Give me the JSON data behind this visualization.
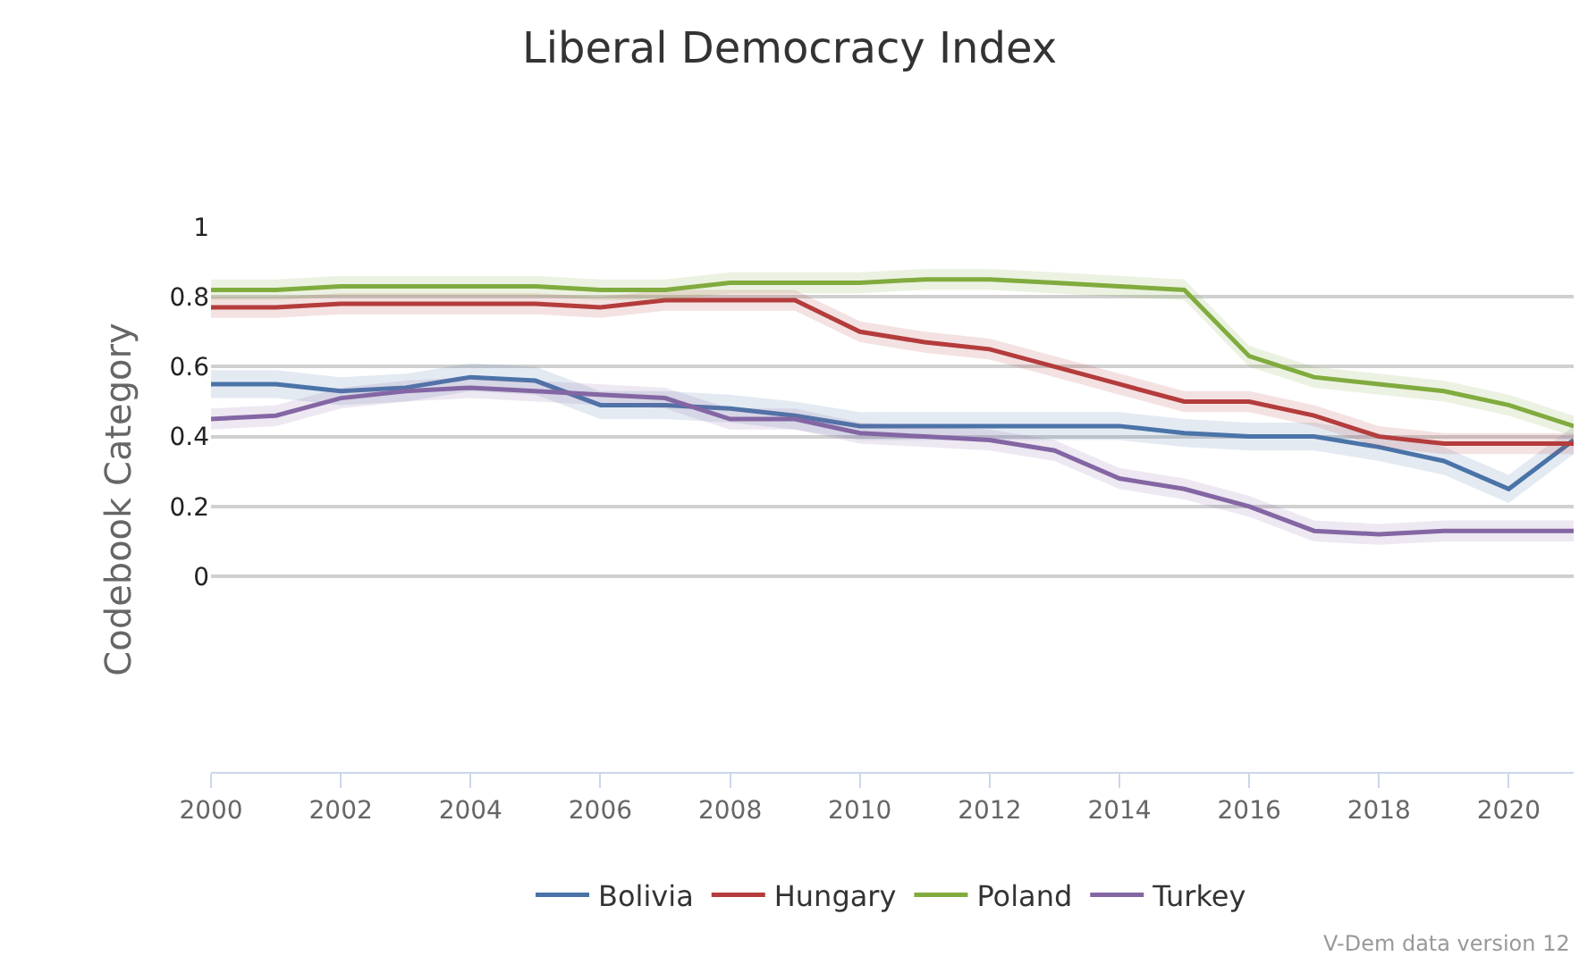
{
  "chart_data": {
    "type": "line",
    "title": "Liberal Democracy Index",
    "ylabel": "Codebook Category",
    "x": [
      2000,
      2001,
      2002,
      2003,
      2004,
      2005,
      2006,
      2007,
      2008,
      2009,
      2010,
      2011,
      2012,
      2013,
      2014,
      2015,
      2016,
      2017,
      2018,
      2019,
      2020,
      2021
    ],
    "xlim": [
      2000,
      2021
    ],
    "xticks": [
      2000,
      2002,
      2004,
      2006,
      2008,
      2010,
      2012,
      2014,
      2016,
      2018,
      2020
    ],
    "ylim": [
      -0.56,
      1
    ],
    "yticks": [
      0,
      0.2,
      0.4,
      0.6,
      0.8,
      1
    ],
    "grid": "y",
    "legend": "bottom",
    "marker": "none",
    "line_style": "solid",
    "annotations": [
      "V-Dem data version 12"
    ],
    "series": [
      {
        "name": "Bolivia",
        "color": "#4a74a8",
        "values": [
          0.55,
          0.55,
          0.53,
          0.54,
          0.57,
          0.56,
          0.49,
          0.49,
          0.48,
          0.46,
          0.43,
          0.43,
          0.43,
          0.43,
          0.43,
          0.41,
          0.4,
          0.4,
          0.37,
          0.33,
          0.25,
          0.39
        ],
        "lower": [
          0.51,
          0.51,
          0.49,
          0.5,
          0.53,
          0.52,
          0.45,
          0.45,
          0.44,
          0.42,
          0.39,
          0.39,
          0.39,
          0.39,
          0.39,
          0.37,
          0.36,
          0.36,
          0.33,
          0.29,
          0.21,
          0.35
        ],
        "upper": [
          0.59,
          0.59,
          0.57,
          0.58,
          0.61,
          0.6,
          0.53,
          0.53,
          0.52,
          0.5,
          0.47,
          0.47,
          0.47,
          0.47,
          0.47,
          0.45,
          0.44,
          0.44,
          0.41,
          0.37,
          0.29,
          0.43
        ]
      },
      {
        "name": "Hungary",
        "color": "#b43c3c",
        "values": [
          0.77,
          0.77,
          0.78,
          0.78,
          0.78,
          0.78,
          0.77,
          0.79,
          0.79,
          0.79,
          0.7,
          0.67,
          0.65,
          0.6,
          0.55,
          0.5,
          0.5,
          0.46,
          0.4,
          0.38,
          0.38,
          0.38
        ],
        "lower": [
          0.74,
          0.74,
          0.75,
          0.75,
          0.75,
          0.75,
          0.74,
          0.76,
          0.76,
          0.76,
          0.67,
          0.64,
          0.62,
          0.57,
          0.52,
          0.47,
          0.47,
          0.43,
          0.37,
          0.35,
          0.35,
          0.35
        ],
        "upper": [
          0.8,
          0.8,
          0.81,
          0.81,
          0.81,
          0.81,
          0.8,
          0.82,
          0.82,
          0.82,
          0.73,
          0.7,
          0.68,
          0.63,
          0.58,
          0.53,
          0.53,
          0.49,
          0.43,
          0.41,
          0.41,
          0.41
        ]
      },
      {
        "name": "Poland",
        "color": "#80ab3e",
        "values": [
          0.82,
          0.82,
          0.83,
          0.83,
          0.83,
          0.83,
          0.82,
          0.82,
          0.84,
          0.84,
          0.84,
          0.85,
          0.85,
          0.84,
          0.83,
          0.82,
          0.63,
          0.57,
          0.55,
          0.53,
          0.49,
          0.43
        ],
        "lower": [
          0.79,
          0.79,
          0.8,
          0.8,
          0.8,
          0.8,
          0.79,
          0.79,
          0.81,
          0.81,
          0.81,
          0.82,
          0.82,
          0.81,
          0.8,
          0.79,
          0.6,
          0.54,
          0.52,
          0.5,
          0.46,
          0.4
        ],
        "upper": [
          0.85,
          0.85,
          0.86,
          0.86,
          0.86,
          0.86,
          0.85,
          0.85,
          0.87,
          0.87,
          0.87,
          0.88,
          0.88,
          0.87,
          0.86,
          0.85,
          0.66,
          0.6,
          0.58,
          0.56,
          0.52,
          0.46
        ]
      },
      {
        "name": "Turkey",
        "color": "#8366a3",
        "values": [
          0.45,
          0.46,
          0.51,
          0.53,
          0.54,
          0.53,
          0.52,
          0.51,
          0.45,
          0.45,
          0.41,
          0.4,
          0.39,
          0.36,
          0.28,
          0.25,
          0.2,
          0.13,
          0.12,
          0.13,
          0.13,
          0.13
        ],
        "lower": [
          0.42,
          0.43,
          0.48,
          0.5,
          0.51,
          0.5,
          0.49,
          0.48,
          0.42,
          0.42,
          0.38,
          0.37,
          0.36,
          0.33,
          0.25,
          0.22,
          0.17,
          0.1,
          0.09,
          0.1,
          0.1,
          0.1
        ],
        "upper": [
          0.48,
          0.49,
          0.54,
          0.56,
          0.57,
          0.56,
          0.55,
          0.54,
          0.48,
          0.48,
          0.44,
          0.43,
          0.42,
          0.39,
          0.31,
          0.28,
          0.23,
          0.16,
          0.15,
          0.16,
          0.16,
          0.16
        ]
      }
    ]
  }
}
